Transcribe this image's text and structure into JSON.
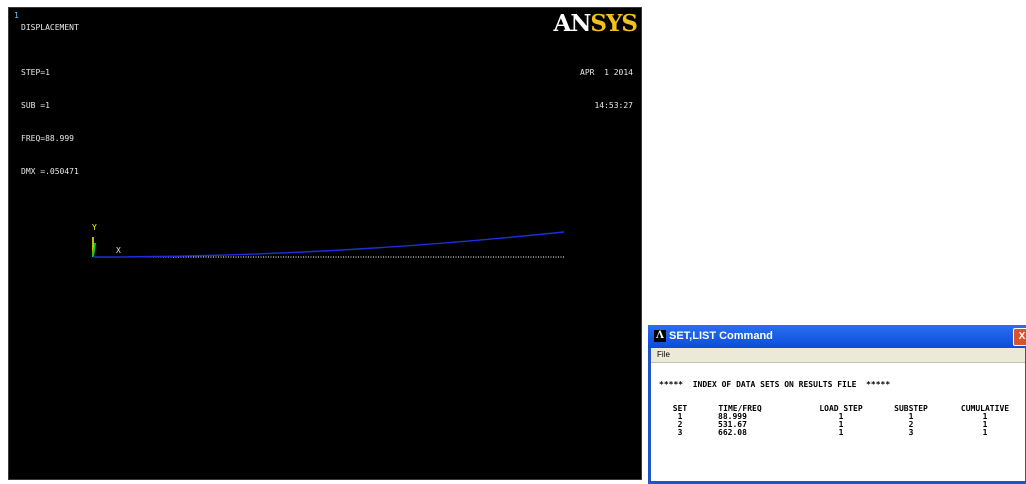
{
  "viewport": {
    "window_number": "1",
    "result_title": "DISPLACEMENT",
    "step_info": [
      "STEP=1",
      "SUB =1",
      "FREQ=88.999",
      "DMX =.050471"
    ],
    "date": "APR  1 2014",
    "time": "14:53:27",
    "logo_part1": "AN",
    "logo_part2": "SYS",
    "y_axis_label": "Y",
    "x_axis_label": "X",
    "colors": {
      "background": "#000000",
      "deformed_shape": "#1c2fd8",
      "undeformed_shape": "#ffffff",
      "y_axis": "#ffff00",
      "z_axis": "#00cc44"
    }
  },
  "dialog": {
    "icon": "ansys-icon",
    "title": "SET,LIST Command",
    "close_label": "X",
    "menu": {
      "file": "File"
    },
    "heading": "*****  INDEX OF DATA SETS ON RESULTS FILE  *****",
    "columns": [
      "SET",
      "TIME/FREQ",
      "LOAD STEP",
      "SUBSTEP",
      "CUMULATIVE"
    ],
    "rows": [
      [
        "1",
        "88.999",
        "1",
        "1",
        "1"
      ],
      [
        "2",
        "531.67",
        "1",
        "2",
        "1"
      ],
      [
        "3",
        "662.08",
        "1",
        "3",
        "1"
      ]
    ]
  }
}
